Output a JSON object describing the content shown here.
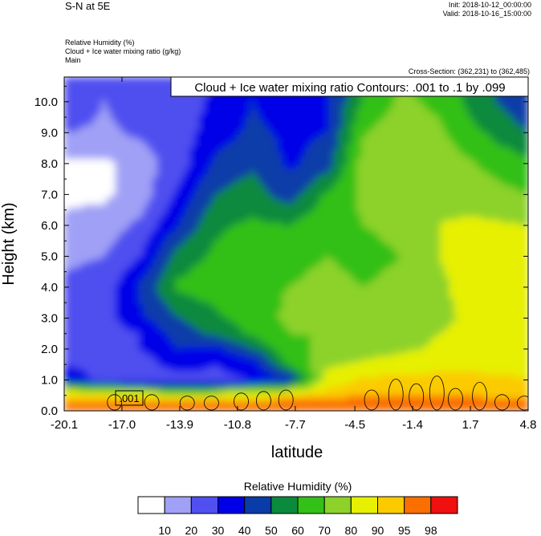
{
  "header": {
    "title": "S-N at 5E",
    "init": "Init: 2018-10-12_00:00:00",
    "valid": "Valid: 2018-10-16_15:00:00",
    "field1": "Relative Humidity   (%)",
    "field2": "Cloud + Ice water mixing ratio   (g/kg)",
    "field3": "Main",
    "cross_section": "Cross-Section: (362,231) to (362,485)"
  },
  "chart_data": {
    "type": "heatmap",
    "contour_title": "Cloud + Ice water mixing ratio Contours: .001 to .1 by .099",
    "contour_label": ".001",
    "xlabel": "latitude",
    "ylabel": "Height (km)",
    "x_ticks": [
      "-20.1",
      "-17.0",
      "-13.9",
      "-10.8",
      "-7.7",
      "-4.5",
      "-1.4",
      "1.7",
      "4.8"
    ],
    "y_ticks": [
      "0.0",
      "1.0",
      "2.0",
      "3.0",
      "4.0",
      "5.0",
      "6.0",
      "7.0",
      "8.0",
      "9.0",
      "10.0"
    ],
    "xlim": [
      -20.1,
      4.8
    ],
    "ylim": [
      0.0,
      10.8
    ],
    "colorbar": {
      "title": "Relative Humidity  (%)",
      "levels": [
        "10",
        "20",
        "30",
        "40",
        "50",
        "60",
        "70",
        "80",
        "90",
        "95",
        "98"
      ],
      "colors": [
        "#ffffff",
        "#a0a0f6",
        "#5050f0",
        "#0000e8",
        "#0a3ca8",
        "#0a8a3c",
        "#33c017",
        "#8cd22a",
        "#e6f000",
        "#fbcb00",
        "#fb6e00",
        "#f01010"
      ]
    },
    "rh_field": {
      "x_lat": [
        -20.1,
        -18.0,
        -16.0,
        -14.0,
        -12.0,
        -10.0,
        -8.0,
        -6.0,
        -4.0,
        -2.0,
        0.0,
        2.0,
        4.8
      ],
      "heights_km": [
        0.0,
        0.3,
        0.6,
        1.0,
        1.5,
        2.0,
        2.5,
        3.0,
        4.0,
        5.0,
        6.0,
        7.0,
        8.0,
        9.0,
        10.0,
        10.8
      ],
      "values": [
        [
          98,
          98,
          98,
          98,
          98,
          98,
          98,
          98,
          98,
          98,
          98,
          98,
          98
        ],
        [
          96,
          96,
          96,
          96,
          97,
          97,
          97,
          96,
          97,
          97,
          97,
          97,
          96
        ],
        [
          85,
          85,
          80,
          70,
          75,
          80,
          85,
          92,
          94,
          94,
          94,
          93,
          92
        ],
        [
          35,
          28,
          25,
          25,
          28,
          30,
          40,
          85,
          92,
          93,
          92,
          92,
          91
        ],
        [
          30,
          28,
          25,
          35,
          30,
          35,
          62,
          78,
          82,
          85,
          88,
          88,
          86
        ],
        [
          28,
          28,
          30,
          40,
          38,
          50,
          68,
          72,
          75,
          78,
          82,
          85,
          83
        ],
        [
          25,
          26,
          30,
          45,
          52,
          62,
          70,
          70,
          72,
          75,
          80,
          83,
          82
        ],
        [
          25,
          26,
          38,
          50,
          58,
          65,
          72,
          72,
          70,
          74,
          78,
          82,
          80
        ],
        [
          22,
          24,
          42,
          62,
          65,
          68,
          70,
          72,
          70,
          72,
          78,
          85,
          80
        ],
        [
          18,
          20,
          30,
          55,
          62,
          66,
          68,
          70,
          68,
          70,
          80,
          85,
          82
        ],
        [
          12,
          15,
          22,
          40,
          58,
          62,
          60,
          68,
          70,
          72,
          80,
          82,
          80
        ],
        [
          8,
          8,
          15,
          32,
          50,
          55,
          45,
          62,
          72,
          72,
          78,
          75,
          70
        ],
        [
          8,
          8,
          15,
          25,
          42,
          48,
          38,
          45,
          75,
          78,
          75,
          70,
          62
        ],
        [
          20,
          18,
          22,
          25,
          35,
          42,
          38,
          40,
          70,
          75,
          72,
          62,
          50
        ],
        [
          30,
          20,
          25,
          25,
          32,
          40,
          35,
          38,
          62,
          72,
          68,
          55,
          42
        ],
        [
          30,
          22,
          25,
          25,
          30,
          40,
          35,
          38,
          60,
          70,
          65,
          55,
          42
        ]
      ]
    },
    "cloud_contours_km": [
      {
        "lat": -17.4,
        "h": 0.5
      },
      {
        "lat": -15.4,
        "h": 0.5
      },
      {
        "lat": -13.5,
        "h": 0.45
      },
      {
        "lat": -12.2,
        "h": 0.45
      },
      {
        "lat": -10.6,
        "h": 0.55
      },
      {
        "lat": -9.4,
        "h": 0.6
      },
      {
        "lat": -8.2,
        "h": 0.65
      },
      {
        "lat": -3.6,
        "h": 0.65
      },
      {
        "lat": -2.3,
        "h": 1.0
      },
      {
        "lat": -1.2,
        "h": 0.85
      },
      {
        "lat": -0.1,
        "h": 1.1
      },
      {
        "lat": 0.9,
        "h": 0.7
      },
      {
        "lat": 2.2,
        "h": 0.9
      },
      {
        "lat": 3.4,
        "h": 0.5
      },
      {
        "lat": 4.6,
        "h": 0.45
      }
    ]
  }
}
